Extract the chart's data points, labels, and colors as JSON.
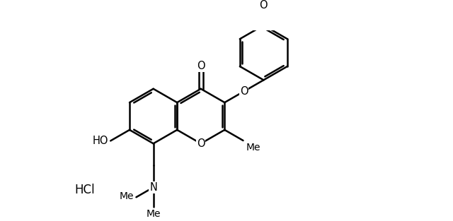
{
  "background_color": "#ffffff",
  "line_color": "#000000",
  "line_width": 1.8,
  "fig_width": 6.4,
  "fig_height": 3.13,
  "dpi": 100,
  "xlim": [
    0,
    10
  ],
  "ylim": [
    0,
    5
  ]
}
